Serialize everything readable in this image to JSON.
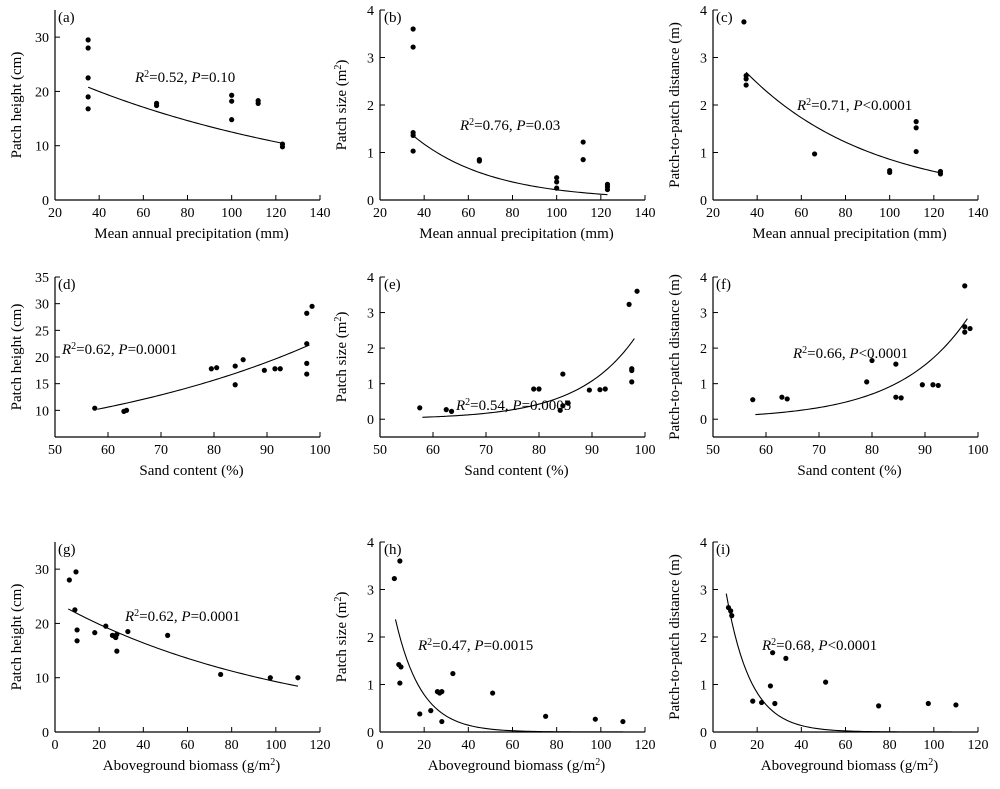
{
  "chart_data": [
    {
      "type": "scatter",
      "panel_label": "(a)",
      "xlabel": "Mean annual precipitation (mm)",
      "ylabel": "Patch height (cm)",
      "xlim": [
        20,
        140
      ],
      "ylim": [
        0,
        35
      ],
      "xticks": [
        20,
        40,
        60,
        80,
        100,
        120,
        140
      ],
      "yticks": [
        0,
        10,
        20,
        30
      ],
      "stat": {
        "r2": "=0.52, ",
        "p": "=0.10"
      },
      "fit": {
        "form": "exp",
        "a": 27.3,
        "b": -0.0078,
        "x_range": [
          35,
          123
        ]
      },
      "points": [
        [
          35,
          29.5
        ],
        [
          35,
          28
        ],
        [
          35,
          22.5
        ],
        [
          35,
          19
        ],
        [
          35,
          16.8
        ],
        [
          66,
          17.8
        ],
        [
          66,
          17.4
        ],
        [
          100,
          19.3
        ],
        [
          100,
          18.2
        ],
        [
          100,
          14.8
        ],
        [
          112,
          18.3
        ],
        [
          112,
          17.8
        ],
        [
          123,
          10.3
        ],
        [
          123,
          9.8
        ]
      ]
    },
    {
      "type": "scatter",
      "panel_label": "(b)",
      "xlabel": "Mean annual precipitation (mm)",
      "ylabel": "Patch size (m²)",
      "xlim": [
        20,
        140
      ],
      "ylim": [
        0,
        4
      ],
      "xticks": [
        20,
        40,
        60,
        80,
        100,
        120,
        140
      ],
      "yticks": [
        0,
        1,
        2,
        3,
        4
      ],
      "stat": {
        "r2": "=0.76, ",
        "p": "=0.03"
      },
      "fit": {
        "form": "exp",
        "a": 3.65,
        "b": -0.0283,
        "x_range": [
          35,
          123
        ]
      },
      "points": [
        [
          35,
          3.6
        ],
        [
          35,
          3.22
        ],
        [
          35,
          1.42
        ],
        [
          35,
          1.36
        ],
        [
          35,
          1.03
        ],
        [
          65,
          0.85
        ],
        [
          65,
          0.82
        ],
        [
          100,
          0.47
        ],
        [
          100,
          0.38
        ],
        [
          100,
          0.25
        ],
        [
          112,
          1.22
        ],
        [
          112,
          0.85
        ],
        [
          123,
          0.33
        ],
        [
          123,
          0.28
        ],
        [
          123,
          0.22
        ]
      ]
    },
    {
      "type": "scatter",
      "panel_label": "(c)",
      "xlabel": "Mean annual precipitation (mm)",
      "ylabel": "Patch-to-patch distance (m)",
      "xlim": [
        20,
        140
      ],
      "ylim": [
        0,
        4
      ],
      "xticks": [
        20,
        40,
        60,
        80,
        100,
        120,
        140
      ],
      "yticks": [
        0,
        1,
        2,
        3,
        4
      ],
      "stat": {
        "r2": "=0.71, ",
        "p": "<0.0001"
      },
      "fit": {
        "form": "exp",
        "a": 4.98,
        "b": -0.0176,
        "x_range": [
          35,
          123
        ]
      },
      "points": [
        [
          34,
          3.75
        ],
        [
          35,
          2.62
        ],
        [
          35,
          2.55
        ],
        [
          35,
          2.42
        ],
        [
          66,
          0.97
        ],
        [
          100,
          0.62
        ],
        [
          100,
          0.58
        ],
        [
          112,
          1.65
        ],
        [
          112,
          1.52
        ],
        [
          112,
          1.02
        ],
        [
          123,
          0.6
        ],
        [
          123,
          0.55
        ]
      ]
    },
    {
      "type": "scatter",
      "panel_label": "(d)",
      "xlabel": "Sand content (%)",
      "ylabel": "Patch height (cm)",
      "xlim": [
        50,
        100
      ],
      "ylim": [
        5,
        35
      ],
      "xticks": [
        50,
        60,
        70,
        80,
        90,
        100
      ],
      "yticks": [
        10,
        15,
        20,
        25,
        30,
        35
      ],
      "stat": {
        "r2": "=0.62, ",
        "p": "=0.0001"
      },
      "fit": {
        "form": "exp",
        "a": 10.2,
        "b": 0.0195,
        "x0": 58,
        "x_range": [
          58,
          98
        ]
      },
      "points": [
        [
          57.5,
          10.4
        ],
        [
          63,
          9.8
        ],
        [
          63.5,
          10
        ],
        [
          79.5,
          17.8
        ],
        [
          80.5,
          18
        ],
        [
          84,
          18.3
        ],
        [
          84,
          14.8
        ],
        [
          85.5,
          19.5
        ],
        [
          89.5,
          17.5
        ],
        [
          91.5,
          17.8
        ],
        [
          92.5,
          17.8
        ],
        [
          97.5,
          28.2
        ],
        [
          97.5,
          22.5
        ],
        [
          97.5,
          18.8
        ],
        [
          97.5,
          16.8
        ],
        [
          98.5,
          29.5
        ]
      ]
    },
    {
      "type": "scatter",
      "panel_label": "(e)",
      "xlabel": "Sand content (%)",
      "ylabel": "Patch size (m²)",
      "xlim": [
        50,
        100
      ],
      "ylim": [
        -0.5,
        4
      ],
      "xticks": [
        50,
        60,
        70,
        80,
        90,
        100
      ],
      "yticks": [
        0,
        1,
        2,
        3,
        4
      ],
      "stat": {
        "r2": "=0.54, ",
        "p": "=0.0005"
      },
      "fit": {
        "form": "exp",
        "a": 0.055,
        "b": 0.093,
        "x0": 58,
        "x_range": [
          58,
          98
        ]
      },
      "points": [
        [
          57.5,
          0.32
        ],
        [
          62.5,
          0.27
        ],
        [
          63.5,
          0.22
        ],
        [
          79,
          0.85
        ],
        [
          80,
          0.85
        ],
        [
          84,
          0.25
        ],
        [
          84.5,
          0.38
        ],
        [
          84.5,
          1.27
        ],
        [
          85.5,
          0.45
        ],
        [
          89.5,
          0.82
        ],
        [
          91.5,
          0.83
        ],
        [
          92.5,
          0.85
        ],
        [
          97,
          3.23
        ],
        [
          97.5,
          1.42
        ],
        [
          97.5,
          1.37
        ],
        [
          97.5,
          1.05
        ],
        [
          98.5,
          3.6
        ]
      ]
    },
    {
      "type": "scatter",
      "panel_label": "(f)",
      "xlabel": "Sand content (%)",
      "ylabel": "Patch-to-patch distance (m)",
      "xlim": [
        50,
        100
      ],
      "ylim": [
        -0.5,
        4
      ],
      "xticks": [
        50,
        60,
        70,
        80,
        90,
        100
      ],
      "yticks": [
        0,
        1,
        2,
        3,
        4
      ],
      "stat": {
        "r2": "=0.66, ",
        "p": "<0.0001"
      },
      "fit": {
        "form": "exp",
        "a": 0.13,
        "b": 0.077,
        "x0": 58,
        "x_range": [
          58,
          98
        ]
      },
      "points": [
        [
          57.5,
          0.55
        ],
        [
          63,
          0.62
        ],
        [
          64,
          0.57
        ],
        [
          79,
          1.05
        ],
        [
          80,
          1.65
        ],
        [
          84.5,
          1.55
        ],
        [
          84.5,
          0.62
        ],
        [
          85.5,
          0.6
        ],
        [
          89.5,
          0.97
        ],
        [
          91.5,
          0.97
        ],
        [
          92.5,
          0.95
        ],
        [
          97.5,
          3.75
        ],
        [
          97.5,
          2.6
        ],
        [
          97.5,
          2.45
        ],
        [
          98.5,
          2.55
        ]
      ]
    },
    {
      "type": "scatter",
      "panel_label": "(g)",
      "xlabel": "Aboveground biomass (g/m²)",
      "ylabel": "Patch height (cm)",
      "xlim": [
        0,
        120
      ],
      "ylim": [
        0,
        35
      ],
      "xticks": [
        0,
        20,
        40,
        60,
        80,
        100,
        120
      ],
      "yticks": [
        0,
        10,
        20,
        30
      ],
      "stat": {
        "r2": "=0.62, ",
        "p": "=0.0001"
      },
      "fit": {
        "form": "exp",
        "a": 24.0,
        "b": -0.0095,
        "x_range": [
          6,
          110
        ]
      },
      "points": [
        [
          6.5,
          28
        ],
        [
          9,
          22.5
        ],
        [
          9.5,
          29.5
        ],
        [
          10,
          18.8
        ],
        [
          10,
          16.8
        ],
        [
          18,
          18.3
        ],
        [
          23,
          19.5
        ],
        [
          26,
          17.8
        ],
        [
          27,
          17.6
        ],
        [
          27.5,
          17.4
        ],
        [
          28,
          18
        ],
        [
          28,
          14.9
        ],
        [
          33,
          18.5
        ],
        [
          51,
          17.8
        ],
        [
          75,
          10.6
        ],
        [
          97.5,
          10
        ],
        [
          110,
          10
        ]
      ]
    },
    {
      "type": "scatter",
      "panel_label": "(h)",
      "xlabel": "Aboveground biomass (g/m²)",
      "ylabel": "Patch size (m²)",
      "xlim": [
        0,
        120
      ],
      "ylim": [
        0,
        4
      ],
      "xticks": [
        0,
        20,
        40,
        60,
        80,
        100,
        120
      ],
      "yticks": [
        0,
        1,
        2,
        3,
        4
      ],
      "stat": {
        "r2": "=0.47, ",
        "p": "=0.0015"
      },
      "fit": {
        "form": "exp",
        "a": 4.3,
        "b": -0.085,
        "x_range": [
          7,
          110
        ]
      },
      "points": [
        [
          6.5,
          3.23
        ],
        [
          9,
          3.6
        ],
        [
          8.5,
          1.42
        ],
        [
          9.5,
          1.37
        ],
        [
          9,
          1.03
        ],
        [
          18,
          0.38
        ],
        [
          23,
          0.45
        ],
        [
          26,
          0.85
        ],
        [
          27,
          0.82
        ],
        [
          28,
          0.85
        ],
        [
          28,
          0.22
        ],
        [
          33,
          1.23
        ],
        [
          51,
          0.82
        ],
        [
          75,
          0.33
        ],
        [
          97.5,
          0.27
        ],
        [
          110,
          0.22
        ]
      ]
    },
    {
      "type": "scatter",
      "panel_label": "(i)",
      "xlabel": "Aboveground biomass (g/m²)",
      "ylabel": "Patch-to-patch distance (m)",
      "xlim": [
        0,
        120
      ],
      "ylim": [
        0,
        4
      ],
      "xticks": [
        0,
        20,
        40,
        60,
        80,
        100,
        120
      ],
      "yticks": [
        0,
        1,
        2,
        3,
        4
      ],
      "stat": {
        "r2": "=0.68, ",
        "p": "<0.0001"
      },
      "fit": {
        "form": "exp",
        "a": 5.0,
        "b": -0.09,
        "x_range": [
          6,
          110
        ]
      },
      "points": [
        [
          7,
          2.62
        ],
        [
          8,
          2.55
        ],
        [
          8.5,
          2.45
        ],
        [
          18,
          0.65
        ],
        [
          22,
          0.62
        ],
        [
          26,
          0.97
        ],
        [
          28,
          0.6
        ],
        [
          27,
          1.67
        ],
        [
          33,
          1.55
        ],
        [
          51,
          1.05
        ],
        [
          75,
          0.55
        ],
        [
          97.5,
          0.6
        ],
        [
          110,
          0.57
        ]
      ]
    }
  ]
}
